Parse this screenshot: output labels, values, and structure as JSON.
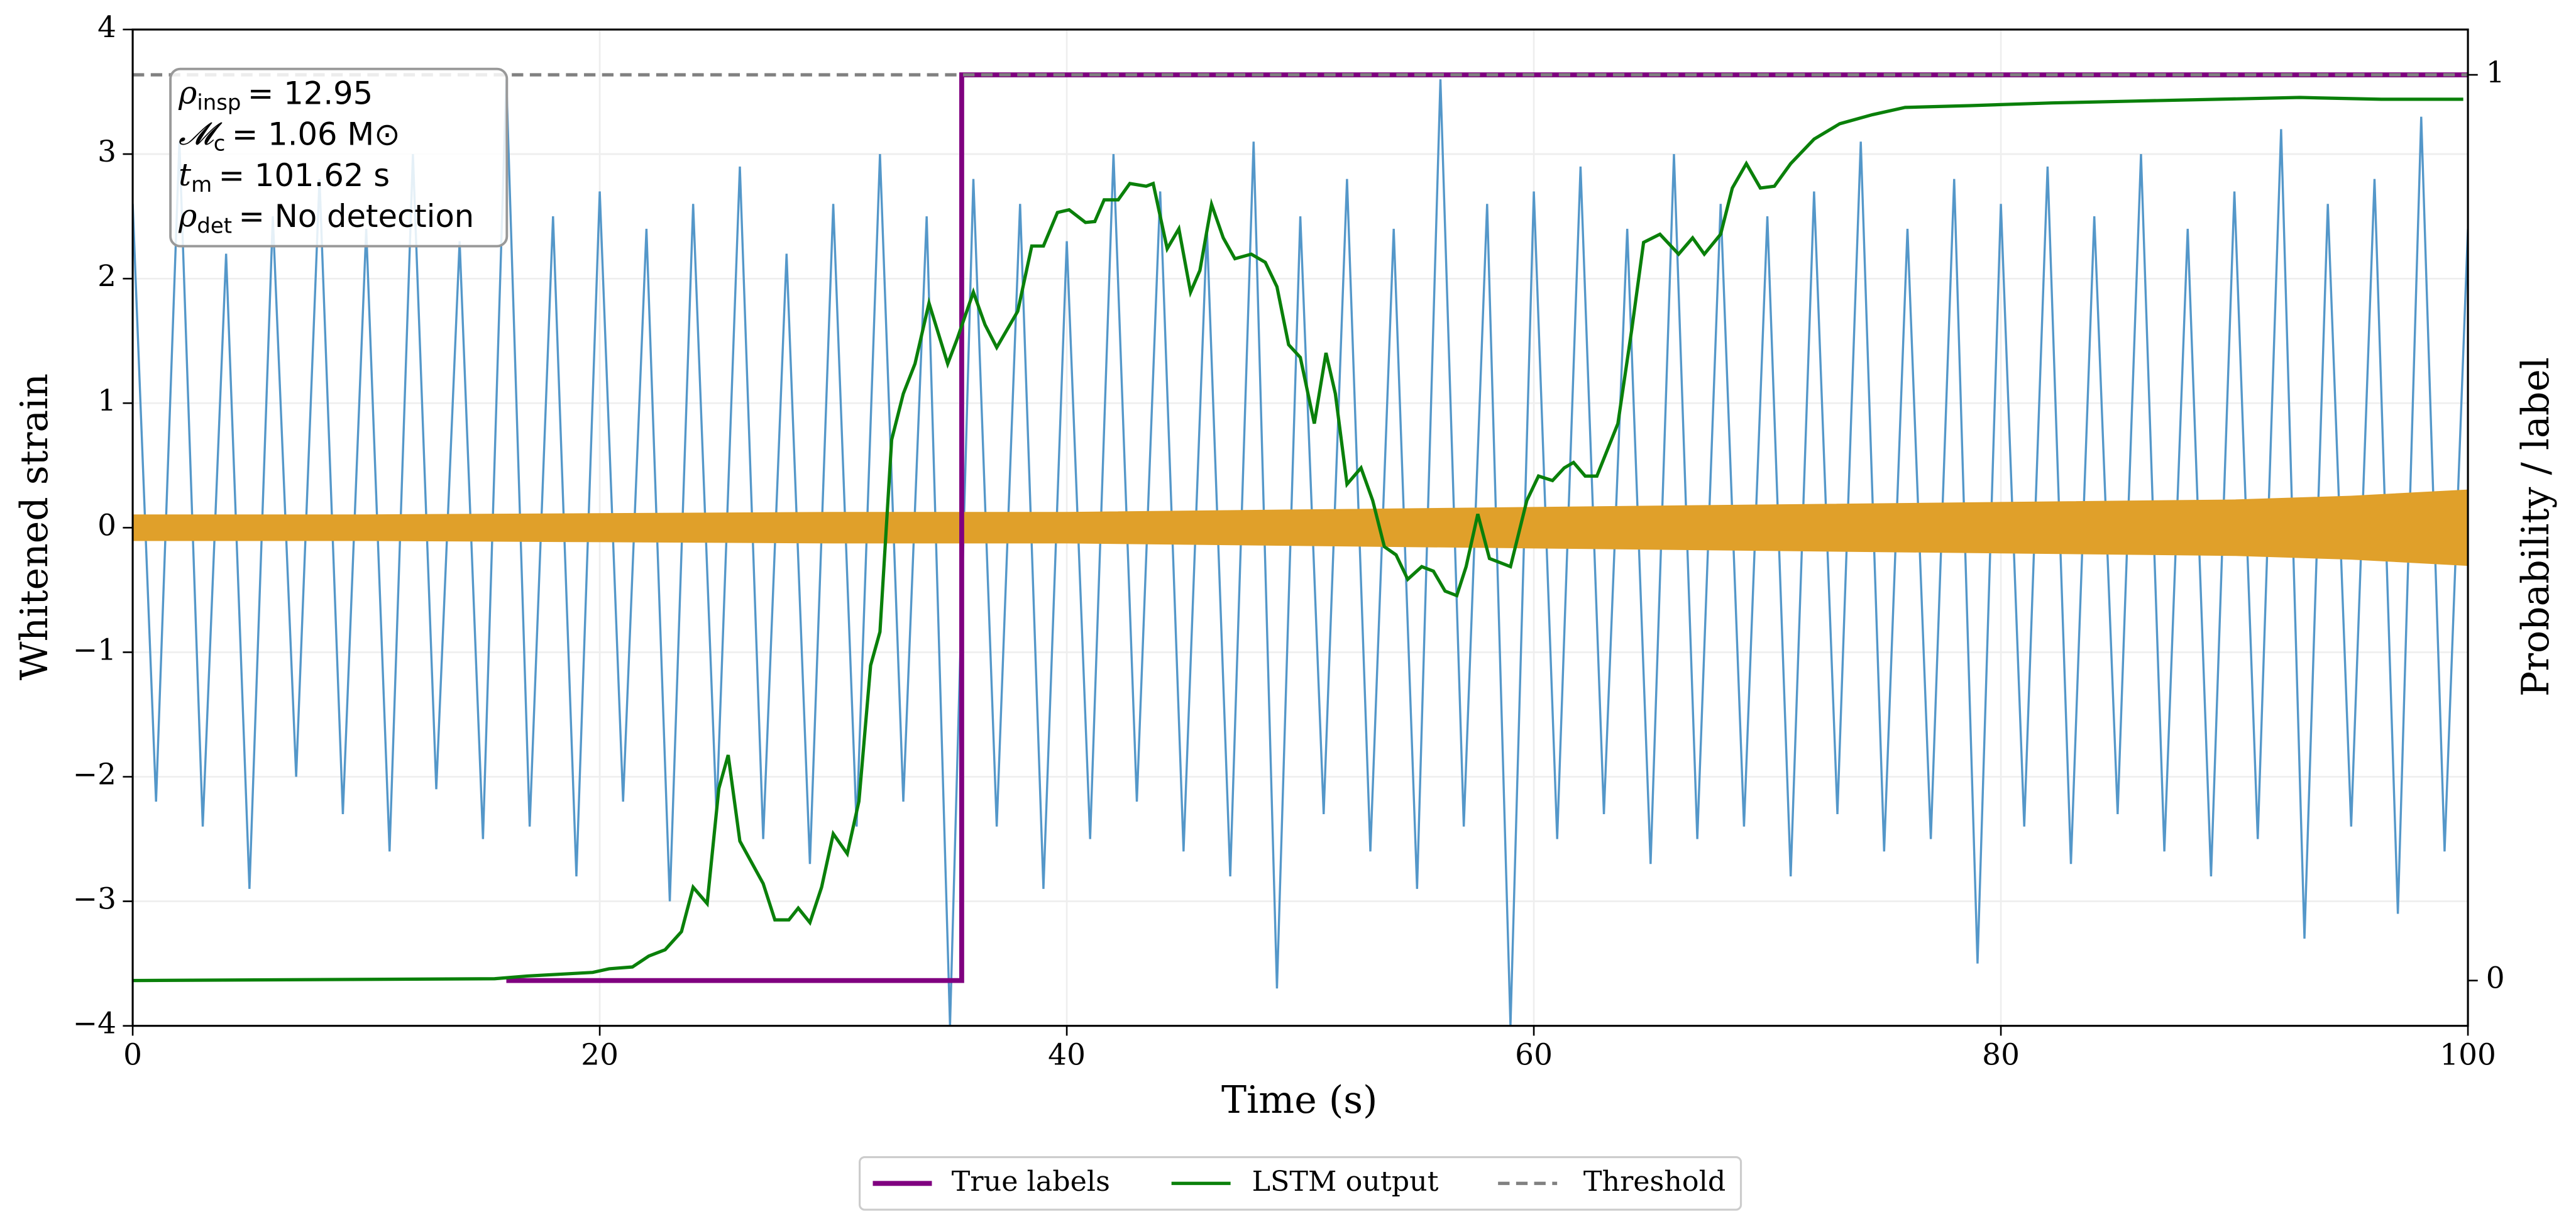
{
  "chart_data": {
    "type": "line",
    "xlabel": "Time (s)",
    "ylabel": "Whitened strain",
    "y2label": "Probability / label",
    "xlim": [
      0,
      100
    ],
    "xticks": [
      0,
      20,
      40,
      60,
      80,
      100
    ],
    "ylim": [
      -4,
      4
    ],
    "yticks": [
      {
        "value": -4,
        "label": "−4"
      },
      {
        "value": -3,
        "label": "−3"
      },
      {
        "value": -2,
        "label": "−2"
      },
      {
        "value": -1,
        "label": "−1"
      },
      0,
      1,
      2,
      3,
      4
    ],
    "y2lim": [
      -0.05,
      1.05
    ],
    "y2ticks": [
      0,
      1
    ],
    "grid": true,
    "legend": "lower center",
    "strain": {
      "color": "#5497c9",
      "x": [
        0,
        1,
        2,
        3,
        4,
        5,
        6,
        7,
        8,
        9,
        10,
        11,
        12,
        13,
        14,
        15,
        16,
        17,
        18,
        19,
        20,
        21,
        22,
        23,
        24,
        25,
        26,
        27,
        28,
        29,
        30,
        31,
        32,
        33,
        34,
        35,
        36,
        37,
        38,
        39,
        40,
        41,
        42,
        43,
        44,
        45,
        46,
        47,
        48,
        49,
        50,
        51,
        52,
        53,
        54,
        55,
        56,
        57,
        58,
        59,
        60,
        61,
        62,
        63,
        64,
        65,
        66,
        67,
        68,
        69,
        70,
        71,
        72,
        73,
        74,
        75,
        76,
        77,
        78,
        79,
        80,
        81,
        82,
        83,
        84,
        85,
        86,
        87,
        88,
        89,
        90,
        91,
        92,
        93,
        94,
        95,
        96,
        97,
        98,
        99,
        100
      ],
      "values": [
        2.6,
        -2.2,
        3.1,
        -2.4,
        2.2,
        -2.9,
        2.5,
        -2.0,
        2.8,
        -2.3,
        2.4,
        -2.6,
        3.0,
        -2.1,
        2.3,
        -2.5,
        3.6,
        -2.4,
        2.5,
        -2.8,
        2.7,
        -2.2,
        2.4,
        -3.0,
        2.6,
        -2.3,
        2.9,
        -2.5,
        2.2,
        -2.7,
        2.6,
        -2.4,
        3.0,
        -2.2,
        2.5,
        -4.0,
        2.8,
        -2.4,
        2.6,
        -2.9,
        2.3,
        -2.5,
        3.0,
        -2.2,
        2.7,
        -2.6,
        2.4,
        -2.8,
        3.1,
        -3.7,
        2.5,
        -2.3,
        2.8,
        -2.6,
        2.4,
        -2.9,
        3.6,
        -2.4,
        2.6,
        -4.0,
        2.7,
        -2.5,
        2.9,
        -2.3,
        2.4,
        -2.7,
        3.0,
        -2.5,
        2.6,
        -2.4,
        2.5,
        -2.8,
        2.7,
        -2.3,
        3.1,
        -2.6,
        2.4,
        -2.5,
        2.8,
        -3.5,
        2.6,
        -2.4,
        2.9,
        -2.7,
        2.5,
        -2.3,
        3.0,
        -2.6,
        2.4,
        -2.8,
        2.7,
        -2.5,
        3.2,
        -3.3,
        2.6,
        -2.4,
        2.8,
        -3.1,
        3.3,
        -2.6,
        2.4
      ]
    },
    "signal": {
      "color": "#e0a02a",
      "x": [
        0,
        10,
        20,
        30,
        40,
        50,
        60,
        70,
        80,
        90,
        95,
        100
      ],
      "amplitude": [
        0.1,
        0.1,
        0.11,
        0.12,
        0.12,
        0.14,
        0.16,
        0.18,
        0.2,
        0.22,
        0.25,
        0.3
      ]
    },
    "series": [
      {
        "name": "True labels",
        "color": "#800080",
        "axis": "y2",
        "width": 3,
        "x": [
          16,
          35.5,
          35.5,
          100
        ],
        "values": [
          0,
          0,
          1,
          1
        ]
      },
      {
        "name": "LSTM output",
        "color": "#0a800a",
        "axis": "y2",
        "width": 2,
        "x": [
          0,
          15.5,
          16.9,
          18.3,
          19.7,
          20.4,
          21.4,
          22.1,
          22.8,
          23.5,
          24.0,
          24.6,
          25.1,
          25.5,
          26.0,
          27.0,
          27.5,
          28.1,
          28.5,
          29.0,
          29.5,
          30.0,
          30.6,
          31.1,
          31.6,
          32.0,
          32.5,
          33.0,
          33.5,
          34.1,
          34.9,
          35.3,
          36.0,
          36.5,
          37.0,
          37.9,
          38.5,
          39.0,
          39.6,
          40.1,
          40.8,
          41.2,
          41.6,
          42.2,
          42.7,
          43.4,
          43.7,
          44.3,
          44.8,
          45.3,
          45.7,
          46.2,
          46.7,
          47.2,
          47.9,
          48.5,
          49.0,
          49.5,
          50.0,
          50.6,
          51.1,
          51.5,
          52.0,
          52.6,
          53.1,
          53.6,
          54.1,
          54.6,
          55.2,
          55.7,
          56.2,
          56.7,
          57.1,
          57.6,
          58.1,
          59.0,
          59.7,
          60.2,
          60.8,
          61.3,
          61.7,
          62.2,
          62.7,
          63.6,
          64.2,
          64.7,
          65.4,
          66.2,
          66.8,
          67.3,
          68.0,
          68.5,
          69.1,
          69.7,
          70.3,
          71.0,
          72.0,
          73.1,
          74.5,
          75.9,
          78.7,
          82.2,
          85.7,
          89.3,
          92.8,
          96.3,
          99.8
        ],
        "values": [
          0,
          0.002,
          0.005,
          0.007,
          0.009,
          0.013,
          0.015,
          0.027,
          0.034,
          0.054,
          0.103,
          0.085,
          0.212,
          0.249,
          0.154,
          0.107,
          0.067,
          0.067,
          0.08,
          0.064,
          0.103,
          0.162,
          0.14,
          0.198,
          0.348,
          0.385,
          0.597,
          0.648,
          0.681,
          0.748,
          0.681,
          0.708,
          0.76,
          0.724,
          0.699,
          0.739,
          0.811,
          0.811,
          0.848,
          0.851,
          0.837,
          0.838,
          0.862,
          0.862,
          0.88,
          0.877,
          0.88,
          0.808,
          0.83,
          0.76,
          0.784,
          0.857,
          0.82,
          0.797,
          0.802,
          0.793,
          0.766,
          0.702,
          0.688,
          0.615,
          0.693,
          0.648,
          0.548,
          0.566,
          0.53,
          0.479,
          0.47,
          0.443,
          0.457,
          0.452,
          0.43,
          0.425,
          0.457,
          0.515,
          0.466,
          0.457,
          0.53,
          0.557,
          0.552,
          0.566,
          0.572,
          0.557,
          0.557,
          0.615,
          0.72,
          0.815,
          0.824,
          0.802,
          0.82,
          0.802,
          0.824,
          0.875,
          0.902,
          0.875,
          0.877,
          0.902,
          0.929,
          0.946,
          0.956,
          0.964,
          0.966,
          0.969,
          0.971,
          0.973,
          0.975,
          0.973,
          0.973
        ]
      },
      {
        "name": "Threshold",
        "color": "#808080",
        "axis": "y2",
        "width": 2,
        "dashed": true,
        "x": [
          0,
          100
        ],
        "values": [
          1,
          1
        ]
      }
    ],
    "annotations": [
      {
        "symbol": "ρ",
        "sub": "insp",
        "text": "= 12.95"
      },
      {
        "symbol": "𝓜",
        "sub": "c",
        "text": "= 1.06 M⊙"
      },
      {
        "symbol": "t",
        "sub": "m",
        "text": "= 101.62 s"
      },
      {
        "symbol": "ρ",
        "sub": "det",
        "text": "= No detection"
      }
    ]
  }
}
